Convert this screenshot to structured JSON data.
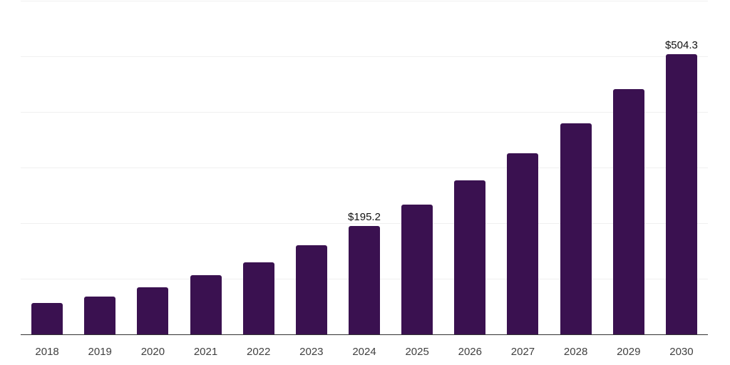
{
  "chart_data": {
    "type": "bar",
    "title": "",
    "xlabel": "",
    "ylabel": "",
    "categories": [
      "2018",
      "2019",
      "2020",
      "2021",
      "2022",
      "2023",
      "2024",
      "2025",
      "2026",
      "2027",
      "2028",
      "2029",
      "2030"
    ],
    "values": [
      57,
      68,
      85,
      107,
      130,
      160,
      195.2,
      233,
      277,
      326,
      380,
      441,
      504.3
    ],
    "bar_labels": [
      "",
      "",
      "",
      "",
      "",
      "",
      "$195.2",
      "",
      "",
      "",
      "",
      "",
      "$504.3"
    ],
    "ylim": [
      0,
      600
    ],
    "grid_step": 100,
    "grid": "horizontal-only",
    "legend": "none",
    "colors": {
      "bar": "#3a1150",
      "grid": "#f0f0f0",
      "axis": "#333333",
      "tick_label": "#404040",
      "data_label": "#111111",
      "background": "#ffffff"
    }
  }
}
